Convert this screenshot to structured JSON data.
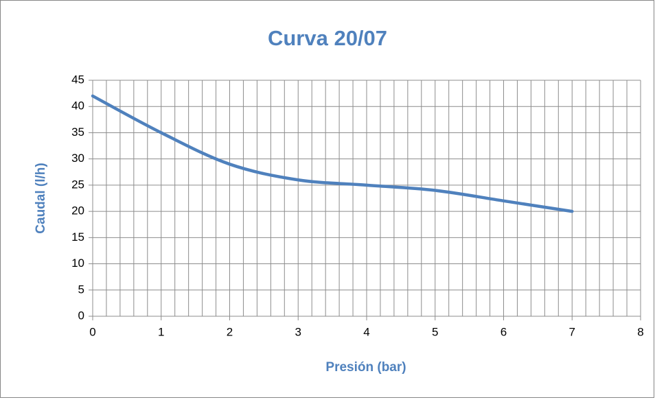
{
  "chart_data": {
    "type": "line",
    "title": "Curva 20/07",
    "x_label": "Presión (bar)",
    "y_label": "Caudal (l/h)",
    "x": [
      0,
      1,
      2,
      3,
      4,
      5,
      6,
      7
    ],
    "series": [
      {
        "name": "Caudal (l/h)",
        "color": "#4f81bd",
        "values": [
          42,
          35,
          29,
          26,
          25,
          24,
          22,
          20
        ]
      }
    ],
    "xlim": [
      0,
      8
    ],
    "xticks": [
      0,
      1,
      2,
      3,
      4,
      5,
      6,
      7,
      8
    ],
    "xminorticks": [
      0.2,
      0.4,
      0.6,
      0.8,
      1.2,
      1.4,
      1.6,
      1.8,
      2.2,
      2.4,
      2.6,
      2.8,
      3.2,
      3.4,
      3.6,
      3.8,
      4.2,
      4.4,
      4.6,
      4.8,
      5.2,
      5.4,
      5.6,
      5.8,
      6.2,
      6.4,
      6.6,
      6.8,
      7.2,
      7.4,
      7.6,
      7.8
    ],
    "ylim": [
      0,
      45
    ],
    "yticks": [
      0,
      5,
      10,
      15,
      20,
      25,
      30,
      35,
      40,
      45
    ],
    "grid": true,
    "smooth": true
  }
}
